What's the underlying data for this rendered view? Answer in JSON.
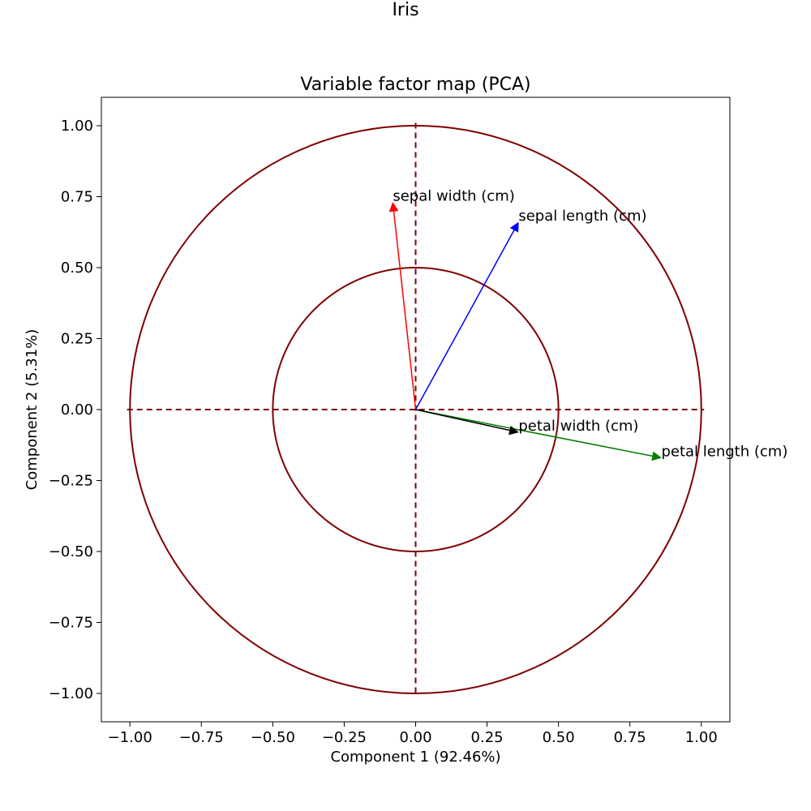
{
  "figure": {
    "suptitle": "Iris"
  },
  "chart_data": {
    "type": "scatter",
    "title": "Variable factor map (PCA)",
    "xlabel": "Component 1 (92.46%)",
    "ylabel": "Component 2 (5.31%)",
    "xlim": [
      -1.1,
      1.1
    ],
    "ylim": [
      -1.1,
      1.1
    ],
    "xticks": [
      -1.0,
      -0.75,
      -0.5,
      -0.25,
      0.0,
      0.25,
      0.5,
      0.75,
      1.0
    ],
    "yticks": [
      -1.0,
      -0.75,
      -0.5,
      -0.25,
      0.0,
      0.25,
      0.5,
      0.75,
      1.0
    ],
    "xtick_labels": [
      "−1.00",
      "−0.75",
      "−0.50",
      "−0.25",
      "0.00",
      "0.25",
      "0.50",
      "0.75",
      "1.00"
    ],
    "ytick_labels": [
      "−1.00",
      "−0.75",
      "−0.50",
      "−0.25",
      "0.00",
      "0.25",
      "0.50",
      "0.75",
      "1.00"
    ],
    "grid": false,
    "circles": [
      {
        "radius": 1.0,
        "color": "#800000"
      },
      {
        "radius": 0.5,
        "color": "#800000"
      }
    ],
    "reference_lines_color": "#800000",
    "series": [
      {
        "name": "sepal length (cm)",
        "x": 0.36,
        "y": 0.66,
        "color": "#0000ff"
      },
      {
        "name": "sepal width (cm)",
        "x": -0.08,
        "y": 0.73,
        "color": "#ff0000"
      },
      {
        "name": "petal length (cm)",
        "x": 0.86,
        "y": -0.17,
        "color": "#008000"
      },
      {
        "name": "petal width (cm)",
        "x": 0.36,
        "y": -0.08,
        "color": "#000000"
      }
    ]
  }
}
